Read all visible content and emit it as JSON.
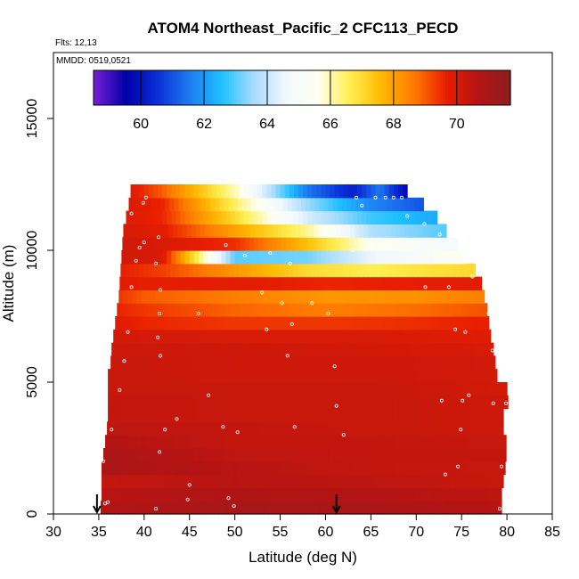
{
  "chart_data": {
    "type": "heatmap",
    "title": "ATOM4 Northeast_Pacific_2 CFC113_PECD",
    "flights_label": "Flts: 12,13",
    "dates_label": "MMDD: 0519,0521",
    "xlabel": "Latitude (deg N)",
    "ylabel": "Altitude (m)",
    "xlim": [
      30,
      85
    ],
    "ylim": [
      0,
      17500
    ],
    "x_ticks": [
      "30",
      "35",
      "40",
      "45",
      "50",
      "55",
      "60",
      "65",
      "70",
      "75",
      "80",
      "85"
    ],
    "y_ticks": [
      "0",
      "5000",
      "10000",
      "15000"
    ],
    "colorbar": {
      "range": [
        58.5,
        71.7
      ],
      "ticks": [
        "60",
        "62",
        "64",
        "66",
        "68",
        "70"
      ],
      "colors": [
        "#7a1fd6",
        "#0000a8",
        "#0a2fd8",
        "#1e7cf0",
        "#1ec0ff",
        "#a8dcff",
        "#f2f8ff",
        "#fffff0",
        "#ffee50",
        "#ffb800",
        "#ff7a00",
        "#e81e00",
        "#b41414",
        "#8c1e1e"
      ]
    },
    "alt_bins": [
      250,
      750,
      1250,
      1750,
      2250,
      2750,
      3250,
      3750,
      4250,
      4750,
      5250,
      5750,
      6250,
      6750,
      7250,
      7750,
      8250,
      8750,
      9250,
      9750,
      10250,
      10750,
      11250,
      11750,
      12250
    ],
    "lat_extent": [
      [
        35.2,
        79.4
      ],
      [
        35.3,
        79.4
      ],
      [
        35.3,
        79.6
      ],
      [
        35.3,
        79.8
      ],
      [
        35.5,
        79.9
      ],
      [
        35.7,
        79.9
      ],
      [
        35.9,
        79.6
      ],
      [
        36.0,
        79.6
      ],
      [
        36.0,
        80.1
      ],
      [
        36.0,
        80.0
      ],
      [
        36.0,
        78.9
      ],
      [
        36.3,
        78.7
      ],
      [
        36.4,
        78.5
      ],
      [
        36.6,
        78.2
      ],
      [
        36.8,
        78.0
      ],
      [
        37.0,
        77.8
      ],
      [
        37.2,
        77.5
      ],
      [
        37.3,
        77.2
      ],
      [
        37.4,
        76.5
      ],
      [
        37.5,
        75.5
      ],
      [
        37.6,
        74.5
      ],
      [
        37.7,
        73.3
      ],
      [
        38.0,
        72.3
      ],
      [
        38.3,
        70.8
      ],
      [
        38.5,
        69.0
      ]
    ],
    "profiles": [
      {
        "alt": 250,
        "lat": [
          35,
          50,
          65,
          80
        ],
        "v": [
          70.7,
          71.0,
          70.9,
          70.6
        ]
      },
      {
        "alt": 750,
        "lat": [
          35,
          50,
          65,
          80
        ],
        "v": [
          70.6,
          70.8,
          70.7,
          70.5
        ]
      },
      {
        "alt": 1250,
        "lat": [
          35,
          50,
          65,
          80
        ],
        "v": [
          70.4,
          70.6,
          70.5,
          70.3
        ]
      },
      {
        "alt": 1750,
        "lat": [
          35,
          50,
          65,
          80
        ],
        "v": [
          70.9,
          70.6,
          70.4,
          70.3
        ]
      },
      {
        "alt": 2250,
        "lat": [
          35,
          50,
          65,
          80
        ],
        "v": [
          70.9,
          70.5,
          70.4,
          70.4
        ]
      },
      {
        "alt": 2750,
        "lat": [
          35,
          50,
          65,
          80
        ],
        "v": [
          70.7,
          70.4,
          70.4,
          70.3
        ]
      },
      {
        "alt": 3250,
        "lat": [
          35,
          50,
          65,
          80
        ],
        "v": [
          70.5,
          70.4,
          70.3,
          70.2
        ]
      },
      {
        "alt": 3750,
        "lat": [
          35,
          50,
          65,
          80
        ],
        "v": [
          70.4,
          70.3,
          70.3,
          70.2
        ]
      },
      {
        "alt": 4250,
        "lat": [
          35,
          50,
          65,
          80
        ],
        "v": [
          70.4,
          70.3,
          70.3,
          70.2
        ]
      },
      {
        "alt": 4750,
        "lat": [
          35,
          50,
          65,
          80
        ],
        "v": [
          70.3,
          70.3,
          70.3,
          70.1
        ]
      },
      {
        "alt": 5250,
        "lat": [
          35,
          50,
          65,
          80
        ],
        "v": [
          70.3,
          70.2,
          70.2,
          70.1
        ]
      },
      {
        "alt": 5750,
        "lat": [
          35,
          50,
          65,
          80
        ],
        "v": [
          70.3,
          70.2,
          70.2,
          70.1
        ]
      },
      {
        "alt": 6250,
        "lat": [
          35,
          50,
          65,
          80
        ],
        "v": [
          70.2,
          70.2,
          70.1,
          70.0
        ]
      },
      {
        "alt": 6750,
        "lat": [
          35,
          50,
          65,
          80
        ],
        "v": [
          70.1,
          70.0,
          70.0,
          69.8
        ]
      },
      {
        "alt": 7250,
        "lat": [
          36,
          40,
          50,
          60,
          70,
          78
        ],
        "v": [
          69.9,
          69.6,
          69.4,
          69.4,
          69.5,
          69.7
        ]
      },
      {
        "alt": 7750,
        "lat": [
          36,
          40,
          50,
          60,
          70,
          78
        ],
        "v": [
          69.7,
          69.4,
          68.9,
          68.6,
          68.8,
          69.1
        ]
      },
      {
        "alt": 8250,
        "lat": [
          36,
          40,
          50,
          60,
          70,
          78
        ],
        "v": [
          69.6,
          69.0,
          68.6,
          68.2,
          68.3,
          68.6
        ]
      },
      {
        "alt": 8750,
        "lat": [
          36,
          40,
          50,
          60,
          70,
          78
        ],
        "v": [
          69.9,
          69.7,
          69.8,
          69.6,
          69.7,
          69.8
        ]
      },
      {
        "alt": 9250,
        "lat": [
          36,
          42,
          50,
          58,
          65,
          75
        ],
        "v": [
          69.8,
          69.3,
          68.2,
          67.0,
          66.6,
          67.0
        ]
      },
      {
        "alt": 9750,
        "lat": [
          36,
          42,
          50,
          58,
          65,
          75
        ],
        "v": [
          70.2,
          70.0,
          63.0,
          63.2,
          64.5,
          65.5
        ]
      },
      {
        "alt": 10250,
        "lat": [
          36,
          42,
          50,
          58,
          65,
          75
        ],
        "v": [
          70.2,
          70.0,
          69.5,
          67.5,
          65.5,
          64.8
        ]
      },
      {
        "alt": 10750,
        "lat": [
          36,
          42,
          50,
          58,
          65,
          75
        ],
        "v": [
          70.1,
          69.8,
          68.0,
          66.2,
          63.7,
          62.8
        ]
      },
      {
        "alt": 11250,
        "lat": [
          36,
          42,
          50,
          58,
          65,
          75
        ],
        "v": [
          70.0,
          69.6,
          67.0,
          64.2,
          62.8,
          62.0
        ]
      },
      {
        "alt": 11750,
        "lat": [
          36,
          42,
          50,
          58,
          65,
          75
        ],
        "v": [
          70.2,
          69.6,
          66.5,
          63.5,
          61.7,
          60.5
        ]
      },
      {
        "alt": 12250,
        "lat": [
          36,
          42,
          50,
          58,
          63,
          66,
          70
        ],
        "v": [
          70.5,
          69.0,
          66.0,
          61.5,
          60.2,
          61.5,
          59.0
        ]
      }
    ],
    "sample_points": [
      [
        35.7,
        400
      ],
      [
        36.0,
        450
      ],
      [
        35.5,
        2000
      ],
      [
        36.4,
        3200
      ],
      [
        37.3,
        4700
      ],
      [
        37.8,
        5800
      ],
      [
        38.2,
        6900
      ],
      [
        38.6,
        8600
      ],
      [
        39.1,
        9600
      ],
      [
        39.5,
        10100
      ],
      [
        40.0,
        10300
      ],
      [
        38.6,
        11400
      ],
      [
        39.9,
        11800
      ],
      [
        40.2,
        12000
      ],
      [
        41.3,
        200
      ],
      [
        41.7,
        2350
      ],
      [
        42.3,
        3200
      ],
      [
        43.6,
        3600
      ],
      [
        44.8,
        550
      ],
      [
        45.0,
        1100
      ],
      [
        41.8,
        6000
      ],
      [
        41.5,
        6700
      ],
      [
        41.7,
        7600
      ],
      [
        41.8,
        8500
      ],
      [
        41.3,
        9500
      ],
      [
        41.6,
        10500
      ],
      [
        46.0,
        7600
      ],
      [
        47.1,
        4500
      ],
      [
        48.7,
        3300
      ],
      [
        49.0,
        10200
      ],
      [
        49.3,
        600
      ],
      [
        49.9,
        300
      ],
      [
        50.3,
        3100
      ],
      [
        51.1,
        9800
      ],
      [
        53.0,
        8400
      ],
      [
        53.5,
        7000
      ],
      [
        53.9,
        9900
      ],
      [
        55.2,
        8000
      ],
      [
        55.8,
        6000
      ],
      [
        56.1,
        9500
      ],
      [
        56.3,
        7200
      ],
      [
        56.6,
        3300
      ],
      [
        58.5,
        8000
      ],
      [
        60.3,
        7600
      ],
      [
        61.0,
        5600
      ],
      [
        61.2,
        4100
      ],
      [
        62.0,
        3000
      ],
      [
        63.0,
        10000
      ],
      [
        64.0,
        11700
      ],
      [
        63.4,
        12000
      ],
      [
        65.5,
        12000
      ],
      [
        66.6,
        12000
      ],
      [
        67.5,
        12000
      ],
      [
        68.4,
        12000
      ],
      [
        69.0,
        11300
      ],
      [
        70.9,
        11000
      ],
      [
        72.6,
        10600
      ],
      [
        73.6,
        8600
      ],
      [
        74.3,
        7000
      ],
      [
        74.9,
        3200
      ],
      [
        75.1,
        4300
      ],
      [
        75.8,
        4500
      ],
      [
        75.4,
        6900
      ],
      [
        76.2,
        9000
      ],
      [
        77.5,
        9000
      ],
      [
        78.0,
        7600
      ],
      [
        78.4,
        6200
      ],
      [
        78.5,
        4200
      ],
      [
        79.9,
        4200
      ],
      [
        79.4,
        1800
      ],
      [
        79.2,
        200
      ],
      [
        74.6,
        1800
      ],
      [
        72.8,
        4300
      ],
      [
        73.2,
        1500
      ],
      [
        71.0,
        8600
      ]
    ],
    "arrows_lat": [
      34.8,
      61.2
    ]
  }
}
